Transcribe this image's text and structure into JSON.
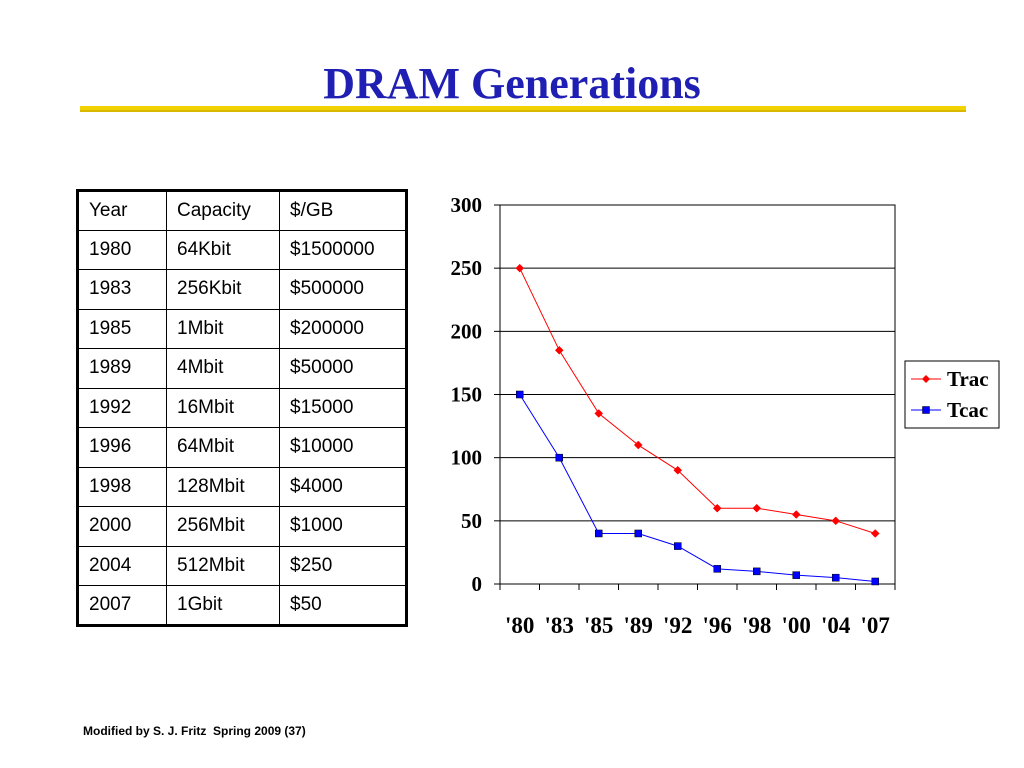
{
  "slide": {
    "title": "DRAM Generations",
    "footer": "Modified by S. J. Fritz  Spring 2009 (37)"
  },
  "table": {
    "headers": [
      "Year",
      "Capacity",
      "$/GB"
    ],
    "rows": [
      [
        "1980",
        "64Kbit",
        "$1500000"
      ],
      [
        "1983",
        "256Kbit",
        "$500000"
      ],
      [
        "1985",
        "1Mbit",
        "$200000"
      ],
      [
        "1989",
        "4Mbit",
        "$50000"
      ],
      [
        "1992",
        "16Mbit",
        "$15000"
      ],
      [
        "1996",
        "64Mbit",
        "$10000"
      ],
      [
        "1998",
        "128Mbit",
        "$4000"
      ],
      [
        "2000",
        "256Mbit",
        "$1000"
      ],
      [
        "2004",
        "512Mbit",
        "$250"
      ],
      [
        "2007",
        "1Gbit",
        "$50"
      ]
    ]
  },
  "chart_data": {
    "type": "line",
    "title": "",
    "xlabel": "",
    "ylabel": "",
    "categories": [
      "'80",
      "'83",
      "'85",
      "'89",
      "'92",
      "'96",
      "'98",
      "'00",
      "'04",
      "'07"
    ],
    "ylim": [
      0,
      300
    ],
    "yticks": [
      0,
      50,
      100,
      150,
      200,
      250,
      300
    ],
    "grid": true,
    "legend": "right",
    "series": [
      {
        "name": "Trac",
        "color": "#ff0000",
        "marker": "diamond",
        "values": [
          250,
          185,
          135,
          110,
          90,
          60,
          60,
          55,
          50,
          40
        ]
      },
      {
        "name": "Tcac",
        "color": "#0000ff",
        "marker": "square",
        "values": [
          150,
          100,
          40,
          40,
          30,
          12,
          10,
          7,
          5,
          2
        ]
      }
    ]
  }
}
